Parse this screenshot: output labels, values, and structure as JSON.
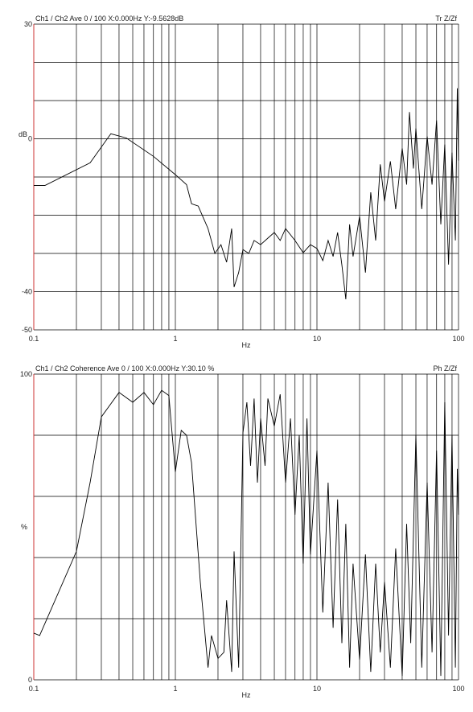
{
  "chart_data": [
    {
      "type": "line",
      "title": "Ch1 / Ch2  Ave 0 / 100  X:0.000Hz  Y:-9.5628dB",
      "corner_label": "Tr Z/Zf",
      "ylabel": "dB",
      "xlabel": "Hz",
      "xscale": "log",
      "color": "#000000",
      "axis_color": "#cc3333",
      "xlim": [
        0.1,
        100
      ],
      "xticks": [
        0.1,
        1,
        10,
        100
      ],
      "xgrid": [
        0.2,
        0.3,
        0.4,
        0.5,
        0.6,
        0.7,
        0.8,
        0.9,
        1,
        2,
        3,
        4,
        5,
        6,
        7,
        8,
        9,
        10,
        20,
        30,
        40,
        50,
        60,
        70,
        80,
        90,
        100
      ],
      "ylim": [
        -50,
        30
      ],
      "yticks": [
        30,
        0,
        -40,
        -50
      ],
      "ygrid": [
        30,
        20,
        10,
        0,
        -10,
        -20,
        -30,
        -40,
        -50
      ],
      "x": [
        0.1,
        0.12,
        0.25,
        0.35,
        0.45,
        0.7,
        1.0,
        1.2,
        1.3,
        1.45,
        1.7,
        1.9,
        2.1,
        2.3,
        2.5,
        2.6,
        2.8,
        3.0,
        3.3,
        3.6,
        4,
        4.5,
        5,
        5.5,
        6,
        7,
        8,
        9,
        10,
        11,
        12,
        13,
        14,
        15,
        16,
        17,
        18,
        20,
        22,
        24,
        26,
        28,
        30,
        33,
        36,
        40,
        43,
        45,
        48,
        50,
        55,
        60,
        65,
        70,
        75,
        80,
        85,
        90,
        95,
        98,
        100
      ],
      "values": [
        -12.2,
        -12.2,
        -6.3,
        1.3,
        0.2,
        -4.6,
        -9.4,
        -12,
        -17,
        -17.6,
        -23.5,
        -30,
        -27.7,
        -32.3,
        -23.5,
        -38.8,
        -35,
        -29,
        -30,
        -26.6,
        -27.7,
        -26,
        -24.5,
        -26.6,
        -23.5,
        -26.6,
        -29.8,
        -27.7,
        -28.7,
        -31.9,
        -26.6,
        -30.8,
        -24.5,
        -33,
        -42,
        -22.4,
        -30.8,
        -20.3,
        -35,
        -14,
        -26.6,
        -6.7,
        -16.4,
        -5.9,
        -18.4,
        -2.5,
        -12,
        7,
        -7.8,
        2.7,
        -18.4,
        0.6,
        -12,
        4.8,
        -22.4,
        -1.5,
        -32.9,
        -3.6,
        -26.6,
        13.2,
        -5.7
      ]
    },
    {
      "type": "line",
      "title": "Ch1 / Ch2  Coherence Ave 0 / 100  X:0.000Hz  Y:30.10 %",
      "corner_label": "Ph Z/Zf",
      "ylabel": "%",
      "xlabel": "Hz",
      "xscale": "log",
      "color": "#000000",
      "axis_color": "#cc3333",
      "xlim": [
        0.1,
        100
      ],
      "xticks": [
        0.1,
        1,
        10,
        100
      ],
      "xgrid": [
        0.2,
        0.3,
        0.4,
        0.5,
        0.6,
        0.7,
        0.8,
        0.9,
        1,
        2,
        3,
        4,
        5,
        6,
        7,
        8,
        9,
        10,
        20,
        30,
        40,
        50,
        60,
        70,
        80,
        90,
        100
      ],
      "ylim": [
        0,
        100
      ],
      "yticks": [
        100,
        0
      ],
      "ygrid": [
        100,
        80,
        60,
        40,
        20,
        0
      ],
      "x": [
        0.1,
        0.11,
        0.2,
        0.25,
        0.3,
        0.4,
        0.5,
        0.6,
        0.7,
        0.8,
        0.9,
        1.0,
        1.1,
        1.2,
        1.3,
        1.5,
        1.7,
        1.8,
        2.0,
        2.2,
        2.3,
        2.5,
        2.6,
        2.8,
        3.0,
        3.2,
        3.4,
        3.6,
        3.8,
        4.0,
        4.3,
        4.5,
        5,
        5.5,
        6,
        6.5,
        7,
        7.5,
        8,
        8.5,
        9,
        10,
        11,
        12,
        13,
        14,
        15,
        16,
        17,
        18,
        20,
        22,
        24,
        26,
        28,
        30,
        33,
        36,
        40,
        43,
        46,
        50,
        55,
        60,
        65,
        70,
        75,
        80,
        85,
        90,
        95,
        98,
        100
      ],
      "values": [
        15.3,
        14.5,
        42,
        64.5,
        86,
        94,
        90.8,
        94,
        90,
        94.7,
        93,
        68,
        81.6,
        80,
        71,
        32,
        4,
        14.5,
        7,
        9,
        26,
        2.6,
        42,
        4,
        80.8,
        90.8,
        70,
        92,
        64.5,
        85.5,
        70,
        92,
        83,
        93.4,
        64.5,
        85.5,
        54,
        80,
        38,
        85.5,
        41,
        75,
        22,
        64.5,
        17,
        59,
        12,
        51,
        4,
        38,
        6.6,
        41,
        2.6,
        38,
        9,
        32,
        4,
        43,
        1.3,
        51,
        12,
        80,
        4,
        64.5,
        9,
        75,
        1.3,
        90.8,
        14.5,
        80,
        4,
        69,
        54
      ]
    }
  ]
}
